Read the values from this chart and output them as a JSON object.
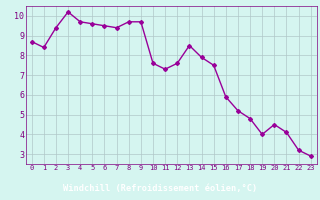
{
  "x": [
    0,
    1,
    2,
    3,
    4,
    5,
    6,
    7,
    8,
    9,
    10,
    11,
    12,
    13,
    14,
    15,
    16,
    17,
    18,
    19,
    20,
    21,
    22,
    23
  ],
  "y": [
    8.7,
    8.4,
    9.4,
    10.2,
    9.7,
    9.6,
    9.5,
    9.4,
    9.7,
    9.7,
    7.6,
    7.3,
    7.6,
    8.5,
    7.9,
    7.5,
    5.9,
    5.2,
    4.8,
    4.0,
    4.5,
    4.1,
    3.2,
    2.9
  ],
  "line_color": "#990099",
  "marker": "D",
  "marker_size": 2,
  "bg_color": "#d5f5f0",
  "grid_color": "#b0c8c8",
  "xlabel": "Windchill (Refroidissement éolien,°C)",
  "xlabel_color": "#ffffff",
  "xlabel_bg": "#800080",
  "xlim": [
    -0.5,
    23.5
  ],
  "ylim": [
    2.5,
    10.5
  ],
  "yticks": [
    3,
    4,
    5,
    6,
    7,
    8,
    9,
    10
  ],
  "xticks": [
    0,
    1,
    2,
    3,
    4,
    5,
    6,
    7,
    8,
    9,
    10,
    11,
    12,
    13,
    14,
    15,
    16,
    17,
    18,
    19,
    20,
    21,
    22,
    23
  ],
  "tick_label_color": "#800080",
  "line_width": 1.0
}
